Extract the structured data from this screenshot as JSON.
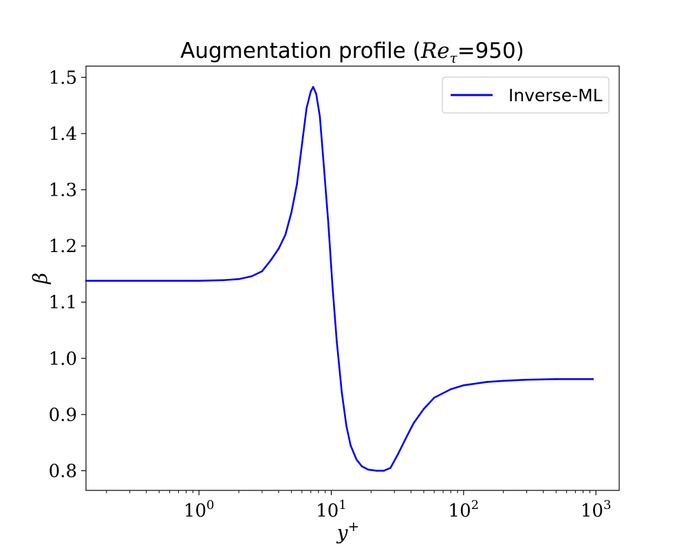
{
  "chart_data": {
    "type": "line",
    "title": "Augmentation profile (Re_τ=950)",
    "title_parts": {
      "prefix": "Augmentation profile (",
      "math_base": "Re",
      "math_sub": "τ",
      "suffix": "=950)"
    },
    "xlabel": {
      "base": "y",
      "sup": "+"
    },
    "ylabel": "β",
    "x_scale": "log",
    "xlim": [
      0.14,
      1500
    ],
    "ylim": [
      0.765,
      1.52
    ],
    "x_major_ticks": [
      {
        "value": 1,
        "base": "10",
        "exp": "0"
      },
      {
        "value": 10,
        "base": "10",
        "exp": "1"
      },
      {
        "value": 100,
        "base": "10",
        "exp": "2"
      },
      {
        "value": 1000,
        "base": "10",
        "exp": "3"
      }
    ],
    "y_ticks": [
      {
        "value": 0.8,
        "label": "0.8"
      },
      {
        "value": 0.9,
        "label": "0.9"
      },
      {
        "value": 1.0,
        "label": "1.0"
      },
      {
        "value": 1.1,
        "label": "1.1"
      },
      {
        "value": 1.2,
        "label": "1.2"
      },
      {
        "value": 1.3,
        "label": "1.3"
      },
      {
        "value": 1.4,
        "label": "1.4"
      },
      {
        "value": 1.5,
        "label": "1.5"
      }
    ],
    "grid": false,
    "legend_position": "upper right",
    "series": [
      {
        "name": "Inverse-ML",
        "color": "#0000ff",
        "points": [
          [
            0.14,
            1.138
          ],
          [
            0.5,
            1.138
          ],
          [
            1.0,
            1.138
          ],
          [
            1.5,
            1.139
          ],
          [
            2.0,
            1.141
          ],
          [
            2.5,
            1.146
          ],
          [
            3.0,
            1.155
          ],
          [
            3.5,
            1.175
          ],
          [
            4.0,
            1.195
          ],
          [
            4.5,
            1.22
          ],
          [
            5.0,
            1.26
          ],
          [
            5.5,
            1.31
          ],
          [
            6.0,
            1.38
          ],
          [
            6.5,
            1.445
          ],
          [
            7.0,
            1.475
          ],
          [
            7.3,
            1.483
          ],
          [
            7.7,
            1.47
          ],
          [
            8.2,
            1.43
          ],
          [
            8.8,
            1.34
          ],
          [
            9.5,
            1.24
          ],
          [
            10.2,
            1.13
          ],
          [
            11.0,
            1.03
          ],
          [
            12.0,
            0.94
          ],
          [
            13.0,
            0.88
          ],
          [
            14.0,
            0.845
          ],
          [
            15.5,
            0.82
          ],
          [
            17.0,
            0.808
          ],
          [
            19.0,
            0.802
          ],
          [
            22.0,
            0.8
          ],
          [
            25.0,
            0.8
          ],
          [
            28.0,
            0.805
          ],
          [
            32.0,
            0.83
          ],
          [
            37.0,
            0.86
          ],
          [
            42.0,
            0.885
          ],
          [
            50.0,
            0.91
          ],
          [
            60.0,
            0.93
          ],
          [
            80.0,
            0.945
          ],
          [
            100.0,
            0.952
          ],
          [
            150.0,
            0.958
          ],
          [
            200.0,
            0.96
          ],
          [
            300.0,
            0.962
          ],
          [
            500.0,
            0.963
          ],
          [
            950.0,
            0.963
          ]
        ]
      }
    ]
  }
}
